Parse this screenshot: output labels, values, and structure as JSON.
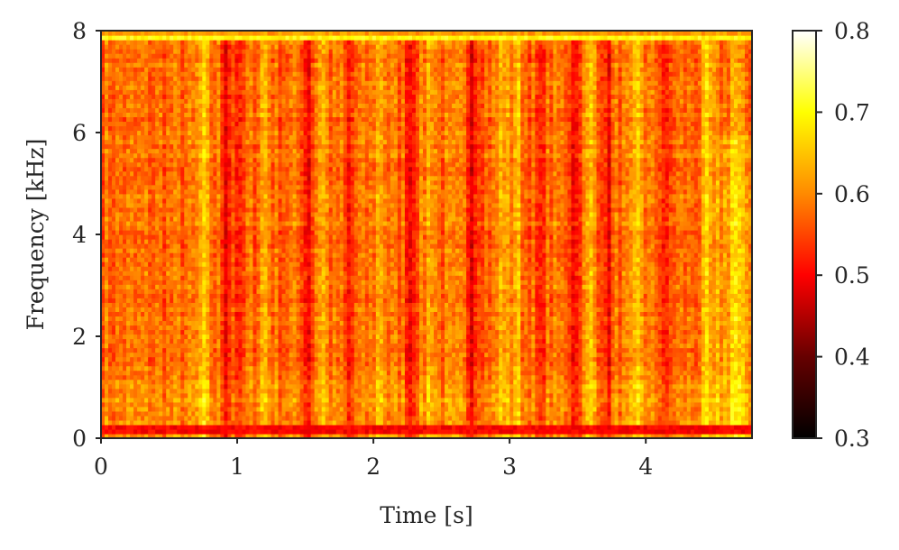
{
  "chart_data": {
    "type": "heatmap",
    "subtype": "spectrogram",
    "colormap": "hot",
    "xlabel": "Time [s]",
    "ylabel": "Frequency [kHz]",
    "xlim": [
      0,
      4.78
    ],
    "ylim": [
      0,
      8
    ],
    "x_ticks": [
      0,
      1,
      2,
      3,
      4
    ],
    "x_tick_labels": [
      "0",
      "1",
      "2",
      "3",
      "4"
    ],
    "y_ticks": [
      0,
      2,
      4,
      6,
      8
    ],
    "y_tick_labels": [
      "0",
      "2",
      "4",
      "6",
      "8"
    ],
    "colorbar": {
      "range": [
        0.3,
        0.8
      ],
      "ticks": [
        0.3,
        0.4,
        0.5,
        0.6,
        0.7,
        0.8
      ],
      "tick_labels": [
        "0.3",
        "0.4",
        "0.5",
        "0.6",
        "0.7",
        "0.8"
      ]
    },
    "baseline_intensity": 0.58,
    "bands": [
      {
        "freq_khz": [
          7.78,
          7.92
        ],
        "intensity": 0.7
      },
      {
        "freq_khz": [
          7.92,
          8.0
        ],
        "intensity": 0.62
      },
      {
        "freq_khz": [
          0.05,
          0.12
        ],
        "intensity": 0.4
      },
      {
        "freq_khz": [
          0.12,
          0.3
        ],
        "intensity": 0.5
      }
    ],
    "dark_streak_times_s": [
      0.92,
      1.02,
      1.52,
      1.82,
      2.27,
      2.72,
      3.22,
      3.48,
      3.72,
      4.15
    ],
    "bright_streak_times_s": [
      0.75,
      1.2,
      1.62,
      2.05,
      2.42,
      2.95,
      3.05,
      3.6,
      3.95,
      4.45,
      4.65
    ],
    "grid": false,
    "legend": "none"
  }
}
